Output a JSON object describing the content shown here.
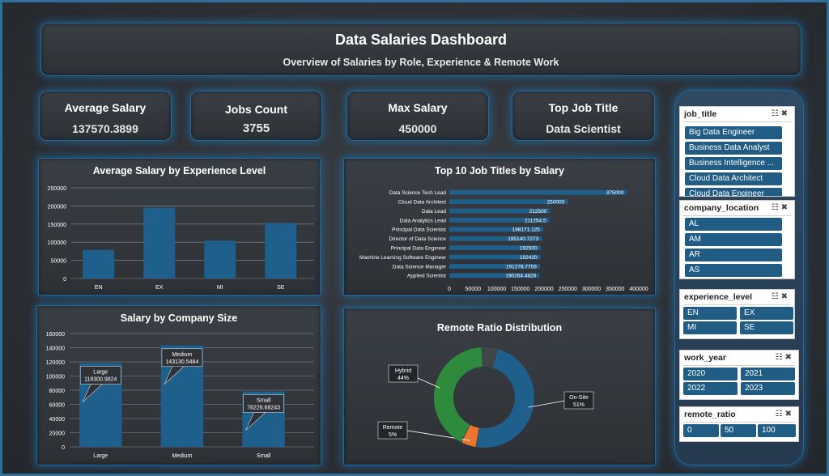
{
  "header": {
    "title": "Data Salaries Dashboard",
    "subtitle": "Overview of Salaries by Role, Experience & Remote Work"
  },
  "kpis": {
    "avg_salary": {
      "label": "Average Salary",
      "value": "137570.3899"
    },
    "jobs_count": {
      "label": "Jobs Count",
      "value": "3755"
    },
    "max_salary": {
      "label": "Max Salary",
      "value": "450000"
    },
    "top_job": {
      "label": "Top Job Title",
      "value": "Data Scientist"
    }
  },
  "colors": {
    "bar": "#1f5f8b",
    "hybrid": "#2e8b3e",
    "remote": "#e8762c",
    "onsite": "#1f5f8b",
    "border": "#1d6aa0"
  },
  "chart_data": [
    {
      "type": "bar",
      "title": "Average Salary by Experience Level",
      "categories": [
        "EN",
        "EX",
        "MI",
        "SE"
      ],
      "values": [
        78546,
        194931,
        104526,
        153051
      ],
      "ylim": [
        0,
        250000
      ],
      "yticks": [
        0,
        50000,
        100000,
        150000,
        200000,
        250000
      ],
      "xlabel": "",
      "ylabel": ""
    },
    {
      "type": "bar",
      "orientation": "horizontal",
      "title": "Top 10 Job Titles by Salary",
      "categories": [
        "Data Science Tech Lead",
        "Cloud Data Architect",
        "Data Lead",
        "Data Analytics Lead",
        "Principal Data Scientist",
        "Director of Data Science",
        "Principal Data Engineer",
        "Machine Learning Software Engineer",
        "Data Science Manager",
        "Applied Scientist"
      ],
      "values": [
        375000,
        250000,
        212500,
        211254.5,
        198171.125,
        195140.7273,
        192500,
        192420,
        191278.7759,
        190264.4828
      ],
      "labels": [
        "375000",
        "250000",
        "212500",
        "211254.5",
        "198171.125",
        "195140.7273",
        "192500",
        "192420",
        "191278.7759",
        "190264.4828"
      ],
      "xlim": [
        0,
        400000
      ],
      "xticks": [
        0,
        50000,
        100000,
        150000,
        200000,
        250000,
        300000,
        350000,
        400000
      ]
    },
    {
      "type": "bar",
      "title": "Salary by Company Size",
      "categories": [
        "Large",
        "Medium",
        "Small"
      ],
      "values": [
        118300.9824,
        143130.5484,
        78226.68243
      ],
      "callouts": [
        "Large\n118300.9824",
        "Medium\n143130.5484",
        "Small\n78226.68243"
      ],
      "ylim": [
        0,
        160000
      ],
      "yticks": [
        0,
        20000,
        40000,
        60000,
        80000,
        100000,
        120000,
        140000,
        160000
      ]
    },
    {
      "type": "pie",
      "donut": true,
      "title": "Remote Ratio Distribution",
      "slices": [
        {
          "name": "On-Site",
          "pct": 51,
          "label": "On-Site\n51%"
        },
        {
          "name": "Remote",
          "pct": 5,
          "label": "Remote\n5%"
        },
        {
          "name": "Hybrid",
          "pct": 44,
          "label": "Hybrid\n44%"
        }
      ]
    }
  ],
  "slicers": {
    "job_title": {
      "title": "job_title",
      "items": [
        "Big Data Engineer",
        "Business Data Analyst",
        "Business Intelligence ...",
        "Cloud Data Architect",
        "Cloud Data Engineer"
      ]
    },
    "company_location": {
      "title": "company_location",
      "items": [
        "AL",
        "AM",
        "AR",
        "AS"
      ]
    },
    "experience_level": {
      "title": "experience_level",
      "items": [
        "EN",
        "EX",
        "MI",
        "SE"
      ]
    },
    "work_year": {
      "title": "work_year",
      "items": [
        "2020",
        "2021",
        "2022",
        "2023"
      ]
    },
    "remote_ratio": {
      "title": "remote_ratio",
      "items": [
        "0",
        "50",
        "100"
      ]
    }
  }
}
